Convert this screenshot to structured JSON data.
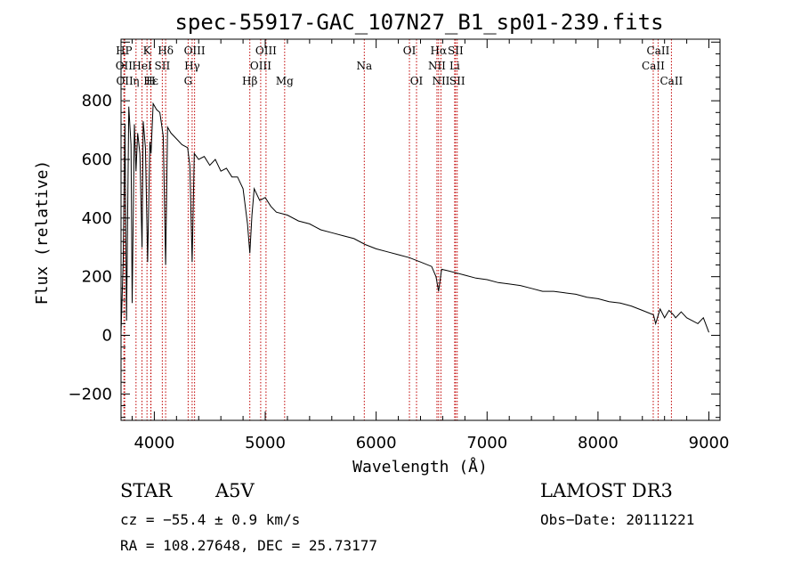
{
  "chart_data": {
    "type": "line",
    "title": "spec-55917-GAC_107N27_B1_sp01-239.fits",
    "xlabel": "Wavelength (Å)",
    "ylabel": "Flux (relative)",
    "xlim": [
      3700,
      9100
    ],
    "ylim": [
      -290,
      1010
    ],
    "xticks": [
      4000,
      5000,
      6000,
      7000,
      8000,
      9000
    ],
    "yticks": [
      -200,
      0,
      200,
      400,
      600,
      800
    ],
    "series": [
      {
        "name": "Flux",
        "x": [
          3700,
          3720,
          3735,
          3750,
          3770,
          3790,
          3800,
          3820,
          3835,
          3850,
          3870,
          3889,
          3900,
          3920,
          3940,
          3960,
          3970,
          3990,
          4020,
          4050,
          4080,
          4102,
          4120,
          4150,
          4200,
          4250,
          4300,
          4320,
          4341,
          4360,
          4400,
          4450,
          4500,
          4550,
          4600,
          4650,
          4700,
          4750,
          4800,
          4840,
          4861,
          4880,
          4900,
          4950,
          5000,
          5050,
          5100,
          5200,
          5300,
          5400,
          5500,
          5600,
          5700,
          5800,
          5900,
          6000,
          6100,
          6200,
          6300,
          6400,
          6500,
          6540,
          6563,
          6590,
          6650,
          6700,
          6800,
          6900,
          7000,
          7100,
          7200,
          7300,
          7400,
          7500,
          7600,
          7700,
          7800,
          7900,
          8000,
          8100,
          8200,
          8300,
          8400,
          8500,
          8520,
          8560,
          8600,
          8640,
          8680,
          8700,
          8750,
          8800,
          8850,
          8900,
          8950,
          9000
        ],
        "values": [
          10,
          260,
          720,
          50,
          780,
          650,
          110,
          720,
          560,
          690,
          620,
          300,
          730,
          640,
          250,
          660,
          620,
          790,
          770,
          760,
          680,
          240,
          710,
          690,
          670,
          650,
          640,
          580,
          250,
          620,
          600,
          610,
          580,
          600,
          560,
          570,
          540,
          540,
          500,
          380,
          280,
          410,
          500,
          460,
          470,
          440,
          420,
          410,
          390,
          380,
          360,
          350,
          340,
          330,
          310,
          295,
          285,
          275,
          265,
          250,
          235,
          200,
          150,
          225,
          220,
          215,
          205,
          195,
          190,
          180,
          175,
          170,
          160,
          150,
          150,
          145,
          140,
          130,
          125,
          115,
          110,
          100,
          85,
          70,
          40,
          90,
          60,
          85,
          70,
          60,
          80,
          60,
          50,
          40,
          60,
          10
        ]
      }
    ],
    "line_markers": [
      {
        "label": "HP",
        "x": 3727,
        "row": 1
      },
      {
        "label": "OII",
        "x": 3727,
        "row": 2
      },
      {
        "label": "OII",
        "x": 3733,
        "row": 3
      },
      {
        "label": "K",
        "x": 3934,
        "row": 1
      },
      {
        "label": "HeI",
        "x": 3889,
        "row": 2
      },
      {
        "label": "Hε",
        "x": 3970,
        "row": 3
      },
      {
        "label": "η",
        "x": 3835,
        "row": 3
      },
      {
        "label": "H",
        "x": 3968,
        "row": 3
      },
      {
        "label": "SII",
        "x": 4072,
        "row": 2
      },
      {
        "label": "Hδ",
        "x": 4102,
        "row": 1
      },
      {
        "label": "OIII",
        "x": 4363,
        "row": 1
      },
      {
        "label": "Hγ",
        "x": 4341,
        "row": 2
      },
      {
        "label": "G",
        "x": 4305,
        "row": 3
      },
      {
        "label": "OIII",
        "x": 5007,
        "row": 1
      },
      {
        "label": "OIII",
        "x": 4959,
        "row": 2
      },
      {
        "label": "Hβ",
        "x": 4861,
        "row": 3
      },
      {
        "label": "Mg",
        "x": 5175,
        "row": 3
      },
      {
        "label": "Na",
        "x": 5893,
        "row": 2
      },
      {
        "label": "OI",
        "x": 6300,
        "row": 1
      },
      {
        "label": "OI",
        "x": 6364,
        "row": 3
      },
      {
        "label": "Hα",
        "x": 6563,
        "row": 1
      },
      {
        "label": "SII",
        "x": 6716,
        "row": 1
      },
      {
        "label": "NII",
        "x": 6548,
        "row": 2
      },
      {
        "label": "Li",
        "x": 6708,
        "row": 2
      },
      {
        "label": "NII",
        "x": 6584,
        "row": 3
      },
      {
        "label": "SII",
        "x": 6731,
        "row": 3
      },
      {
        "label": "CaII",
        "x": 8542,
        "row": 1
      },
      {
        "label": "CaII",
        "x": 8498,
        "row": 2
      },
      {
        "label": "CaII",
        "x": 8662,
        "row": 3
      }
    ]
  },
  "info": {
    "class": "STAR",
    "subclass": "A5V",
    "survey": "LAMOST DR3",
    "cz": "cz = −55.4 ± 0.9 km/s",
    "obs_date": "Obs−Date: 20111221",
    "radec": "RA = 108.27648, DEC =  25.73177"
  }
}
